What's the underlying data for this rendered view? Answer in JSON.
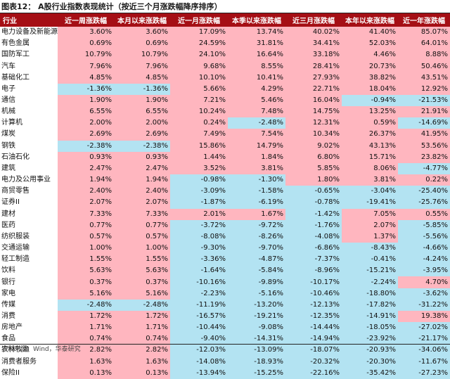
{
  "title": "图表12： A股行业指数表现统计（按近三个月涨跌幅降序排序）",
  "source": "资料来源：Wind，华泰研究",
  "colors": {
    "header_bg": "#a50f15",
    "positive_bg": "#ffb6bf",
    "negative_bg": "#b3e3f2"
  },
  "columns": [
    "行业",
    "近一周涨跌幅",
    "本月以来涨跌幅",
    "近一月涨跌幅",
    "本季以来涨跌幅",
    "近三月涨跌幅",
    "本年以来涨跌幅",
    "近一年涨跌幅"
  ],
  "rows": [
    {
      "name": "电力设备及新能源",
      "values": [
        "3.60%",
        "3.60%",
        "17.09%",
        "13.74%",
        "40.02%",
        "41.40%",
        "85.07%"
      ]
    },
    {
      "name": "有色金属",
      "values": [
        "0.69%",
        "0.69%",
        "24.59%",
        "31.81%",
        "34.41%",
        "52.03%",
        "64.01%"
      ]
    },
    {
      "name": "国防军工",
      "values": [
        "10.79%",
        "10.79%",
        "24.10%",
        "16.64%",
        "33.18%",
        "4.46%",
        "8.88%"
      ]
    },
    {
      "name": "汽车",
      "values": [
        "7.96%",
        "7.96%",
        "9.68%",
        "8.55%",
        "28.41%",
        "20.73%",
        "50.46%"
      ]
    },
    {
      "name": "基础化工",
      "values": [
        "4.85%",
        "4.85%",
        "10.10%",
        "10.41%",
        "27.93%",
        "38.82%",
        "43.51%"
      ]
    },
    {
      "name": "电子",
      "values": [
        "-1.36%",
        "-1.36%",
        "5.66%",
        "4.29%",
        "22.71%",
        "18.04%",
        "12.92%"
      ]
    },
    {
      "name": "通信",
      "values": [
        "1.90%",
        "1.90%",
        "7.21%",
        "5.46%",
        "16.04%",
        "-0.94%",
        "-21.53%"
      ]
    },
    {
      "name": "机械",
      "values": [
        "6.55%",
        "6.55%",
        "10.24%",
        "7.48%",
        "14.75%",
        "13.25%",
        "21.91%"
      ]
    },
    {
      "name": "计算机",
      "values": [
        "2.00%",
        "2.00%",
        "0.24%",
        "-2.48%",
        "12.31%",
        "0.59%",
        "-14.69%"
      ]
    },
    {
      "name": "煤炭",
      "values": [
        "2.69%",
        "2.69%",
        "7.49%",
        "7.54%",
        "10.34%",
        "26.37%",
        "41.95%"
      ]
    },
    {
      "name": "钢铁",
      "values": [
        "-2.38%",
        "-2.38%",
        "15.86%",
        "14.79%",
        "9.02%",
        "43.13%",
        "53.56%"
      ]
    },
    {
      "name": "石油石化",
      "values": [
        "0.93%",
        "0.93%",
        "1.44%",
        "1.84%",
        "6.80%",
        "15.71%",
        "23.82%"
      ]
    },
    {
      "name": "建筑",
      "values": [
        "2.47%",
        "2.47%",
        "3.52%",
        "3.81%",
        "5.85%",
        "8.06%",
        "-4.77%"
      ]
    },
    {
      "name": "电力及公用事业",
      "values": [
        "1.94%",
        "1.94%",
        "-0.98%",
        "-1.30%",
        "1.80%",
        "3.81%",
        "0.22%"
      ]
    },
    {
      "name": "商贸零售",
      "values": [
        "2.40%",
        "2.40%",
        "-3.09%",
        "-1.58%",
        "-0.65%",
        "-3.04%",
        "-25.40%"
      ]
    },
    {
      "name": "证券II",
      "values": [
        "2.07%",
        "2.07%",
        "-1.87%",
        "-6.19%",
        "-0.78%",
        "-19.41%",
        "-25.76%"
      ]
    },
    {
      "name": "建材",
      "values": [
        "7.33%",
        "7.33%",
        "2.01%",
        "1.67%",
        "-1.42%",
        "7.05%",
        "0.55%"
      ]
    },
    {
      "name": "医药",
      "values": [
        "0.77%",
        "0.77%",
        "-3.72%",
        "-9.72%",
        "-1.76%",
        "2.07%",
        "-5.85%"
      ]
    },
    {
      "name": "纺织服装",
      "values": [
        "0.57%",
        "0.57%",
        "-8.08%",
        "-8.26%",
        "-4.08%",
        "1.37%",
        "-5.56%"
      ]
    },
    {
      "name": "交通运输",
      "values": [
        "1.00%",
        "1.00%",
        "-9.30%",
        "-9.70%",
        "-6.86%",
        "-8.43%",
        "-4.66%"
      ]
    },
    {
      "name": "轻工制造",
      "values": [
        "1.55%",
        "1.55%",
        "-3.36%",
        "-4.87%",
        "-7.37%",
        "-0.41%",
        "-4.24%"
      ]
    },
    {
      "name": "饮料",
      "values": [
        "5.63%",
        "5.63%",
        "-1.64%",
        "-5.84%",
        "-8.96%",
        "-15.21%",
        "-3.95%"
      ]
    },
    {
      "name": "银行",
      "values": [
        "0.37%",
        "0.37%",
        "-10.16%",
        "-9.89%",
        "-10.17%",
        "-2.24%",
        "4.70%"
      ]
    },
    {
      "name": "家电",
      "values": [
        "5.16%",
        "5.16%",
        "-2.23%",
        "-5.16%",
        "-10.46%",
        "-18.80%",
        "-3.62%"
      ]
    },
    {
      "name": "传媒",
      "values": [
        "-2.48%",
        "-2.48%",
        "-11.19%",
        "-13.20%",
        "-12.13%",
        "-17.82%",
        "-31.22%"
      ]
    },
    {
      "name": "消费",
      "values": [
        "1.72%",
        "1.72%",
        "-16.57%",
        "-19.21%",
        "-12.35%",
        "-14.91%",
        "19.38%"
      ]
    },
    {
      "name": "房地产",
      "values": [
        "1.71%",
        "1.71%",
        "-10.44%",
        "-9.08%",
        "-14.44%",
        "-18.05%",
        "-27.02%"
      ]
    },
    {
      "name": "食品",
      "values": [
        "0.74%",
        "0.74%",
        "-9.40%",
        "-14.31%",
        "-14.94%",
        "-23.92%",
        "-21.17%"
      ]
    },
    {
      "name": "农林牧渔",
      "values": [
        "2.82%",
        "2.82%",
        "-12.03%",
        "-13.09%",
        "-18.07%",
        "-20.93%",
        "-34.06%"
      ]
    },
    {
      "name": "消费者服务",
      "values": [
        "1.63%",
        "1.63%",
        "-14.08%",
        "-18.93%",
        "-20.32%",
        "-20.30%",
        "-11.67%"
      ]
    },
    {
      "name": "保险II",
      "values": [
        "0.13%",
        "0.13%",
        "-13.94%",
        "-15.25%",
        "-22.16%",
        "-35.42%",
        "-27.23%"
      ]
    }
  ]
}
